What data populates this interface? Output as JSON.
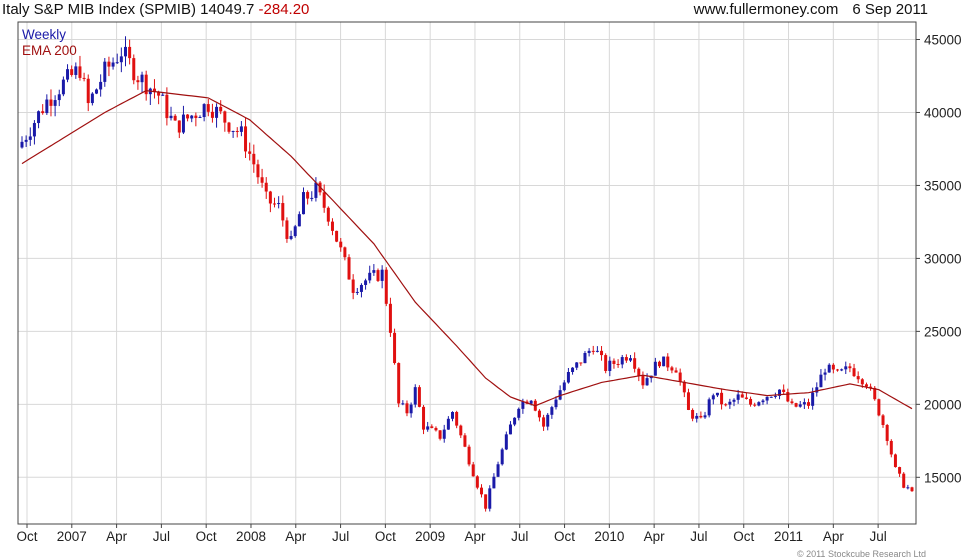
{
  "header": {
    "title_main": "Italy S&P MIB Index (SPMIB) 14049.7",
    "title_change": "-284.20",
    "site": "www.fullermoney.com",
    "date": "6 Sep 2011"
  },
  "legend": {
    "series_label": "Weekly",
    "ema_label": "EMA 200"
  },
  "copyright": "© 2011 Stockcube Research Ltd",
  "colors": {
    "up": "#1a1aa8",
    "down": "#e01010",
    "ema": "#a01010",
    "grid": "#d8d8d8",
    "axis": "#444444"
  },
  "chart_data": {
    "type": "candlestick",
    "frequency": "weekly",
    "ylim": [
      11800,
      46200
    ],
    "yticks": [
      15000,
      20000,
      25000,
      30000,
      35000,
      40000,
      45000
    ],
    "grid": true,
    "y_axis_side": "right",
    "x_labels": [
      "Oct",
      "2007",
      "Apr",
      "Jul",
      "Oct",
      "2008",
      "Apr",
      "Jul",
      "Oct",
      "2009",
      "Apr",
      "Jul",
      "Oct",
      "2010",
      "Apr",
      "Jul",
      "Oct",
      "2011",
      "Apr",
      "Jul"
    ],
    "close_anchors": [
      [
        0,
        38000
      ],
      [
        6,
        40800
      ],
      [
        10,
        42000
      ],
      [
        14,
        43000
      ],
      [
        16,
        40500
      ],
      [
        20,
        42800
      ],
      [
        24,
        44200
      ],
      [
        28,
        42500
      ],
      [
        33,
        41200
      ],
      [
        37,
        39000
      ],
      [
        41,
        39800
      ],
      [
        45,
        40600
      ],
      [
        49,
        39500
      ],
      [
        53,
        38500
      ],
      [
        56,
        36500
      ],
      [
        59,
        34000
      ],
      [
        62,
        33500
      ],
      [
        65,
        31000
      ],
      [
        68,
        34000
      ],
      [
        71,
        34700
      ],
      [
        74,
        33000
      ],
      [
        77,
        30500
      ],
      [
        80,
        28000
      ],
      [
        83,
        28500
      ],
      [
        87,
        29000
      ],
      [
        89,
        25200
      ],
      [
        91,
        20000
      ],
      [
        93,
        19500
      ],
      [
        95,
        21000
      ],
      [
        97,
        18500
      ],
      [
        101,
        17800
      ],
      [
        104,
        19500
      ],
      [
        107,
        17000
      ],
      [
        110,
        14500
      ],
      [
        112,
        13000
      ],
      [
        115,
        16000
      ],
      [
        118,
        18500
      ],
      [
        120,
        20000
      ],
      [
        123,
        20500
      ],
      [
        126,
        18500
      ],
      [
        129,
        20500
      ],
      [
        132,
        22000
      ],
      [
        135,
        23000
      ],
      [
        138,
        24000
      ],
      [
        141,
        22500
      ],
      [
        144,
        23000
      ],
      [
        147,
        23500
      ],
      [
        150,
        21500
      ],
      [
        154,
        23000
      ],
      [
        158,
        22500
      ],
      [
        161,
        19500
      ],
      [
        164,
        18800
      ],
      [
        167,
        20800
      ],
      [
        170,
        19800
      ],
      [
        173,
        20500
      ],
      [
        176,
        20000
      ],
      [
        179,
        20500
      ],
      [
        183,
        21000
      ],
      [
        186,
        19800
      ],
      [
        190,
        20000
      ],
      [
        194,
        22500
      ],
      [
        197,
        22000
      ],
      [
        200,
        22500
      ],
      [
        204,
        21500
      ],
      [
        207,
        19500
      ],
      [
        209,
        17800
      ],
      [
        211,
        15500
      ],
      [
        213,
        14500
      ],
      [
        215,
        14049.7
      ]
    ],
    "ema200_anchors": [
      [
        0,
        36500
      ],
      [
        20,
        40000
      ],
      [
        30,
        41500
      ],
      [
        45,
        41000
      ],
      [
        55,
        39500
      ],
      [
        65,
        37000
      ],
      [
        75,
        34000
      ],
      [
        85,
        31000
      ],
      [
        95,
        27000
      ],
      [
        105,
        24000
      ],
      [
        112,
        21800
      ],
      [
        118,
        20500
      ],
      [
        124,
        19900
      ],
      [
        130,
        20600
      ],
      [
        140,
        21500
      ],
      [
        150,
        22000
      ],
      [
        160,
        21500
      ],
      [
        170,
        21000
      ],
      [
        180,
        20600
      ],
      [
        190,
        20800
      ],
      [
        200,
        21400
      ],
      [
        207,
        21000
      ],
      [
        215,
        19700
      ]
    ]
  }
}
